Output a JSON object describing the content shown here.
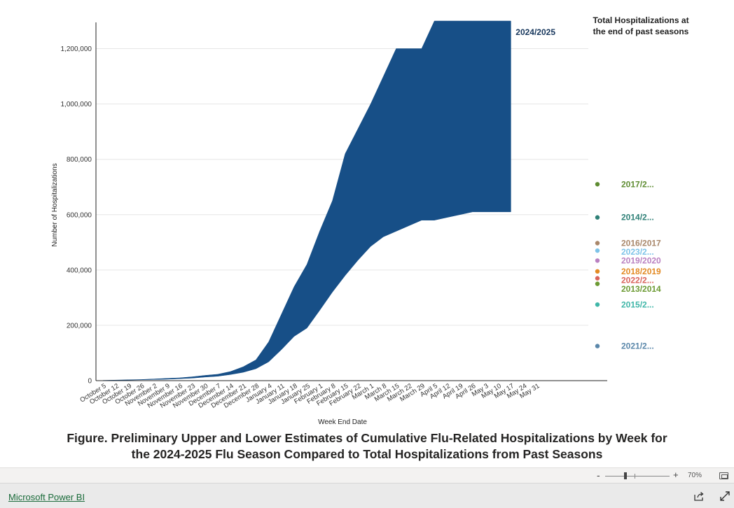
{
  "chart_data": {
    "type": "area",
    "title": "",
    "xlabel": "Week End Date",
    "ylabel": "Number of Hospitalizations",
    "ylim": [
      0,
      1300000
    ],
    "yticks": [
      0,
      200000,
      400000,
      600000,
      800000,
      1000000,
      1200000
    ],
    "ytick_labels": [
      "0",
      "200,000",
      "400,000",
      "600,000",
      "800,000",
      "1,000,000",
      "1,200,000"
    ],
    "grid": true,
    "categories": [
      "October 5",
      "October 12",
      "October 19",
      "October 26",
      "November 2",
      "November 9",
      "November 16",
      "November 23",
      "November 30",
      "December 7",
      "December 14",
      "December 21",
      "December 28",
      "January 4",
      "January 11",
      "January 18",
      "January 25",
      "February 1",
      "February 8",
      "February 15",
      "February 22",
      "March 1",
      "March 8",
      "March 15",
      "March 22",
      "March 29",
      "April 5",
      "April 12",
      "April 19",
      "April 26",
      "May 3",
      "May 10",
      "May 17",
      "May 24",
      "May 31"
    ],
    "series": [
      {
        "name": "2024/2025",
        "color": "#174f87",
        "upper": [
          1000,
          2000,
          3000,
          4000,
          6000,
          8000,
          10000,
          14000,
          19000,
          23000,
          33000,
          50000,
          75000,
          140000,
          240000,
          340000,
          420000,
          540000,
          650000,
          820000,
          910000,
          1000000,
          1100000,
          1200000,
          1200000,
          1200000,
          1300000,
          1300000,
          1300000,
          1300000,
          1300000,
          1300000,
          1300000
        ],
        "lower": [
          500,
          1000,
          2000,
          3000,
          4000,
          5000,
          7000,
          9000,
          13000,
          16000,
          22000,
          30000,
          43000,
          68000,
          112000,
          160000,
          190000,
          254000,
          320000,
          380000,
          435000,
          485000,
          520000,
          540000,
          560000,
          580000,
          580000,
          590000,
          600000,
          610000,
          610000,
          610000,
          610000
        ]
      }
    ],
    "legend": {
      "title": "Total Hospitalizations at the end of past seasons",
      "placement": "right",
      "items": [
        {
          "label": "2017/2...",
          "value": 710000,
          "color": "#5e8c31"
        },
        {
          "label": "2014/2...",
          "value": 590000,
          "color": "#2f8077"
        },
        {
          "label": "2016/2017",
          "value": 497000,
          "color": "#a9876a"
        },
        {
          "label": "2023/2...",
          "value": 470000,
          "color": "#7dc3e8"
        },
        {
          "label": "2019/2020",
          "value": 434000,
          "color": "#b980c1"
        },
        {
          "label": "2018/2019",
          "value": 395000,
          "color": "#e38a23"
        },
        {
          "label": "2022/2...",
          "value": 370000,
          "color": "#d9635b"
        },
        {
          "label": "2013/2014",
          "value": 350000,
          "color": "#6c9a33"
        },
        {
          "label": "2015/2...",
          "value": 275000,
          "color": "#3fb6a8"
        },
        {
          "label": "2021/2...",
          "value": 125000,
          "color": "#5a87aa"
        }
      ]
    }
  },
  "caption": {
    "line1": "Figure. Preliminary Upper and Lower Estimates of Cumulative Flu-Related Hospitalizations by Week for",
    "line2": "the 2024-2025 Flu Season Compared to Total Hospitalizations from Past Seasons"
  },
  "zoom": {
    "minus": "-",
    "plus": "+",
    "value": "70%"
  },
  "footer": {
    "brand": "Microsoft Power BI"
  },
  "icons": {
    "share": "share-icon",
    "fullscreen": "fullscreen-icon",
    "fit": "fit-to-page-icon"
  }
}
